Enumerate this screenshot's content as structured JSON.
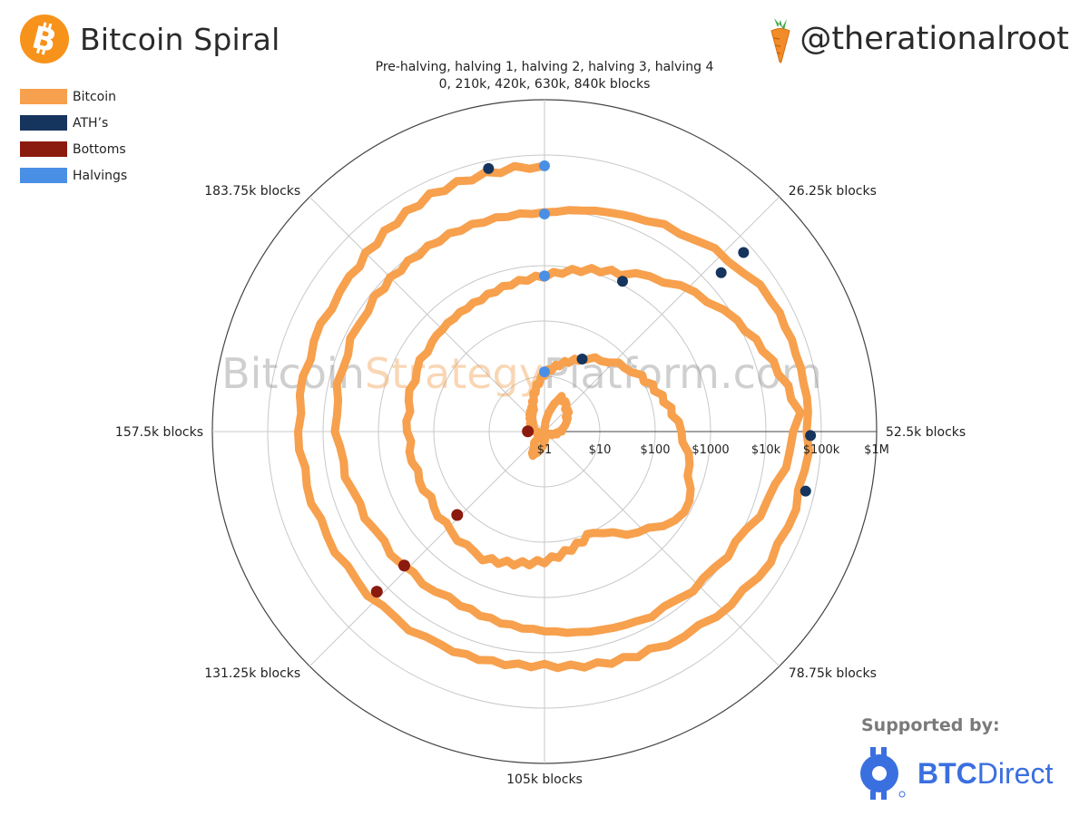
{
  "header": {
    "title": "Bitcoin Spiral",
    "handle": "@therationalroot"
  },
  "watermark": {
    "part1": "Bitcoin",
    "part2": "Strategy",
    "part3": "Platform.com"
  },
  "legend": {
    "items": [
      {
        "label": "Bitcoin",
        "color": "#f7a04d"
      },
      {
        "label": "ATH’s",
        "color": "#15355e"
      },
      {
        "label": "Bottoms",
        "color": "#8b1a0f"
      },
      {
        "label": "Halvings",
        "color": "#4a8fe6"
      }
    ]
  },
  "sponsor": {
    "label": "Supported by:",
    "brand_bold": "BTC",
    "brand_rest": "Direct"
  },
  "chart_data": {
    "type": "polar-spiral",
    "radial_scale": "log",
    "radial_ticks": [
      "$1",
      "$10",
      "$100",
      "$1000",
      "$10k",
      "$100k",
      "$1M"
    ],
    "radial_tick_values": [
      1,
      10,
      100,
      1000,
      10000,
      100000,
      1000000
    ],
    "angular_label_top_line1": "Pre-halving, halving 1, halving 2, halving 3, halving 4",
    "angular_label_top_line2": "0, 210k, 420k, 630k, 840k blocks",
    "angular_labels": [
      "26.25k blocks",
      "52.5k blocks",
      "78.75k blocks",
      "105k blocks",
      "131.25k blocks",
      "157.5k blocks",
      "183.75k blocks"
    ],
    "cycle_length_blocks": 210000,
    "bitcoin_path_blocks_k": [
      0,
      15,
      35,
      50,
      70,
      90,
      105,
      120,
      140,
      160,
      180,
      195,
      210,
      225,
      245,
      260,
      280,
      300,
      315,
      330,
      350,
      370,
      390,
      405,
      420,
      435,
      455,
      470,
      490,
      510,
      525,
      540,
      560,
      580,
      600,
      615,
      630,
      645,
      665,
      680,
      700,
      720,
      735,
      750,
      770,
      790,
      810,
      825,
      840
    ],
    "bitcoin_path_price_usd": [
      1,
      5,
      3,
      2,
      1.2,
      0.8,
      1.5,
      3,
      1,
      1.5,
      2,
      3,
      11,
      28,
      100,
      250,
      900,
      100,
      220,
      350,
      250,
      300,
      400,
      450,
      650,
      1500,
      10000,
      40000,
      10000,
      6500,
      4000,
      3000,
      3500,
      6000,
      8000,
      9000,
      9000,
      17000,
      55000,
      60000,
      50000,
      25000,
      17000,
      20000,
      22000,
      28000,
      30000,
      55000,
      64000
    ],
    "aths": [
      {
        "block_k": 16,
        "price": 30
      },
      {
        "block_k": 226,
        "price": 1150
      },
      {
        "block_k": 448,
        "price": 19700
      },
      {
        "block_k": 473,
        "price": 64000
      },
      {
        "block_k": 658,
        "price": 69000
      },
      {
        "block_k": 690,
        "price": 69000
      },
      {
        "block_k": 833,
        "price": 73000
      }
    ],
    "bottoms": [
      {
        "block_k": 158,
        "price": 2
      },
      {
        "block_k": 342,
        "price": 152
      },
      {
        "block_k": 552,
        "price": 3200
      },
      {
        "block_k": 762,
        "price": 15500
      }
    ],
    "halvings": [
      {
        "block_k": 210,
        "price": 12
      },
      {
        "block_k": 420,
        "price": 650
      },
      {
        "block_k": 630,
        "price": 8600
      },
      {
        "block_k": 840,
        "price": 64000
      }
    ]
  }
}
